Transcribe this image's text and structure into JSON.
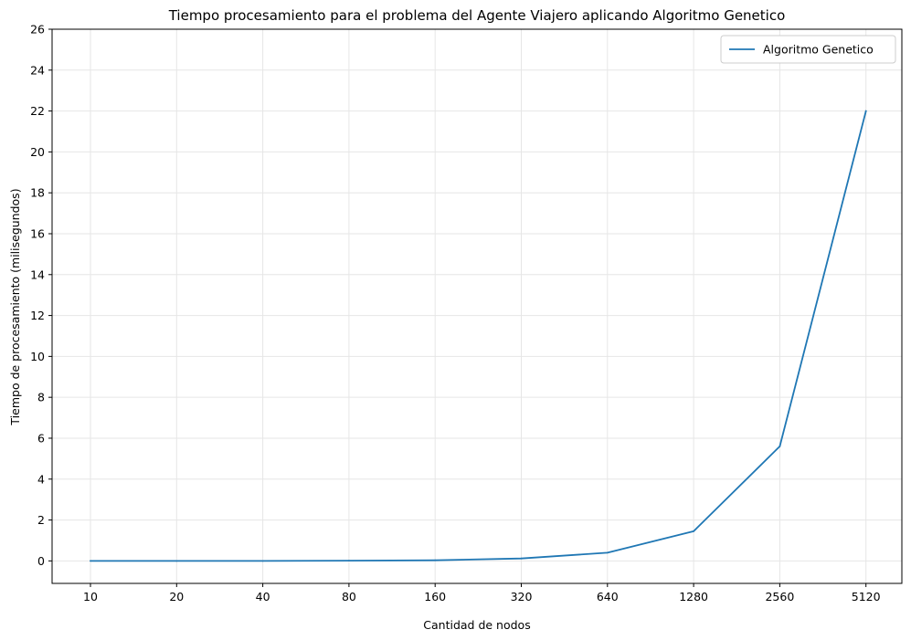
{
  "chart_data": {
    "type": "line",
    "title": "Tiempo procesamiento para el problema del Agente Viajero aplicando Algoritmo Genetico",
    "xlabel": "Cantidad de nodos",
    "ylabel": "Tiempo de procesamiento (milisegundos)",
    "categories": [
      "10",
      "20",
      "40",
      "80",
      "160",
      "320",
      "640",
      "1280",
      "2560",
      "5120"
    ],
    "series": [
      {
        "name": "Algoritmo Genetico",
        "color": "#1f77b4",
        "values": [
          0.0,
          0.0,
          0.0,
          0.01,
          0.03,
          0.12,
          0.4,
          1.45,
          5.6,
          22.0
        ]
      }
    ],
    "ylim": [
      -1.1,
      26
    ],
    "yticks": [
      0,
      2,
      4,
      6,
      8,
      10,
      12,
      14,
      16,
      18,
      20,
      22,
      24,
      26
    ],
    "grid": true,
    "legend_position": "top-right"
  }
}
